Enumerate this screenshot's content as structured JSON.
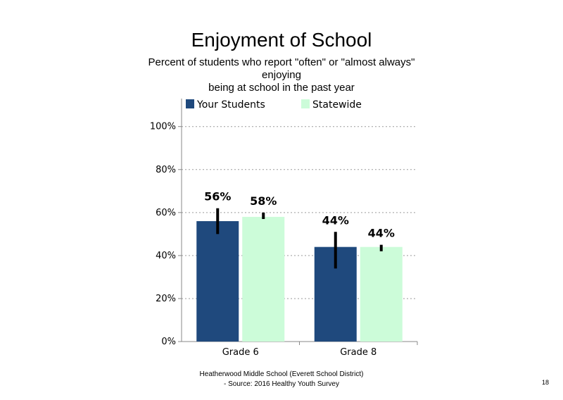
{
  "chart_data": {
    "type": "bar",
    "title": "Enjoyment of School",
    "subtitle_lines": [
      "Percent of students  who report \"often\" or \"almost always\"",
      "enjoying",
      "being at school in the past year"
    ],
    "categories": [
      "Grade 6",
      "Grade 8"
    ],
    "series": [
      {
        "name": "Your Students",
        "color": "#1f497d",
        "values": [
          56,
          44
        ],
        "labels": [
          "56%",
          "44%"
        ],
        "error_low": [
          50,
          34
        ],
        "error_high": [
          62,
          51
        ]
      },
      {
        "name": "Statewide",
        "color": "#ccfcd9",
        "values": [
          58,
          44
        ],
        "labels": [
          "58%",
          "44%"
        ],
        "error_low": [
          57,
          42
        ],
        "error_high": [
          60,
          45
        ]
      }
    ],
    "yticks": [
      "0%",
      "20%",
      "40%",
      "60%",
      "80%",
      "100%"
    ],
    "ytick_values": [
      0,
      20,
      40,
      60,
      80,
      100
    ],
    "ylim": [
      0,
      113
    ],
    "grid": true,
    "legend_position": "top"
  },
  "footer": {
    "line1": "Heatherwood Middle School (Everett School District)",
    "line2": "- Source: 2016 Healthy  Youth Survey"
  },
  "page_number": "18"
}
